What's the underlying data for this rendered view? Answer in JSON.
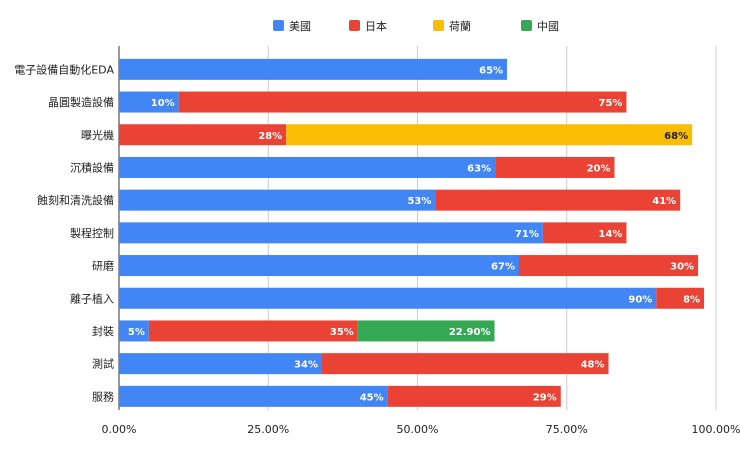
{
  "chart_data": {
    "type": "bar",
    "orientation": "horizontal",
    "stacked": true,
    "title": "",
    "xlabel": "",
    "ylabel": "",
    "xlim": [
      0,
      100
    ],
    "xticks": [
      0,
      25,
      50,
      75,
      100
    ],
    "xtick_labels": [
      "0.00%",
      "25.00%",
      "50.00%",
      "75.00%",
      "100.00%"
    ],
    "grid": true,
    "legend_position": "top-center",
    "categories": [
      "電子設備自動化EDA",
      "晶圓製造設備",
      "曝光機",
      "沉積設備",
      "蝕刻和清洗設備",
      "製程控制",
      "研磨",
      "離子植入",
      "封裝",
      "測試",
      "服務"
    ],
    "series": [
      {
        "name": "美國",
        "color": "#4285f4",
        "label_color": "#ffffff",
        "values": [
          65,
          10,
          null,
          63,
          53,
          71,
          67,
          90,
          5,
          34,
          45
        ],
        "labels": [
          "65%",
          "10%",
          "",
          "63%",
          "53%",
          "71%",
          "67%",
          "90%",
          "5%",
          "34%",
          "45%"
        ]
      },
      {
        "name": "日本",
        "color": "#ea4335",
        "label_color": "#ffffff",
        "values": [
          null,
          75,
          28,
          20,
          41,
          14,
          30,
          8,
          35,
          48,
          29
        ],
        "labels": [
          "",
          "75%",
          "28%",
          "20%",
          "41%",
          "14%",
          "30%",
          "8%",
          "35%",
          "48%",
          "29%"
        ]
      },
      {
        "name": "荷蘭",
        "color": "#fbbc04",
        "label_color": "#222222",
        "values": [
          null,
          null,
          68,
          null,
          null,
          null,
          null,
          null,
          null,
          null,
          null
        ],
        "labels": [
          "",
          "",
          "68%",
          "",
          "",
          "",
          "",
          "",
          "",
          "",
          ""
        ]
      },
      {
        "name": "中國",
        "color": "#34a853",
        "label_color": "#ffffff",
        "values": [
          null,
          null,
          null,
          null,
          null,
          null,
          null,
          null,
          22.9,
          null,
          null
        ],
        "labels": [
          "",
          "",
          "",
          "",
          "",
          "",
          "",
          "",
          "22.90%",
          "",
          ""
        ]
      }
    ]
  }
}
